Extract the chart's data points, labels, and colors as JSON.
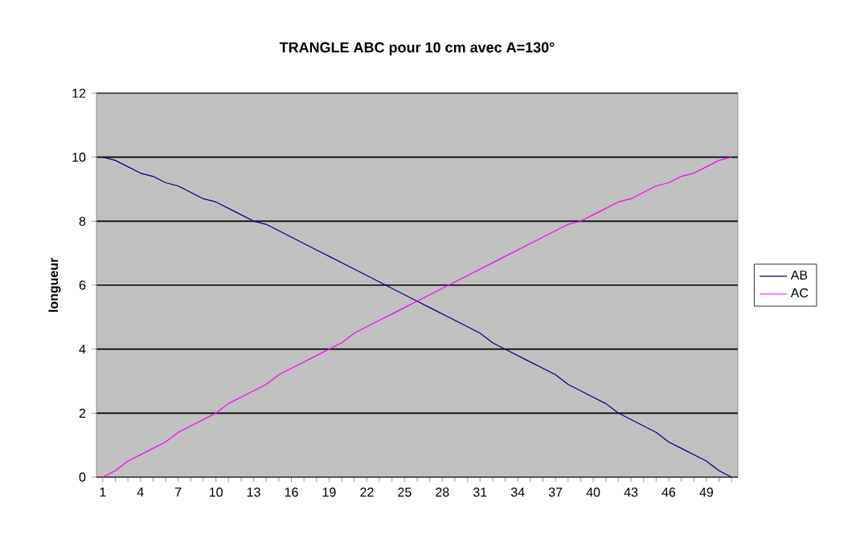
{
  "chart_data": {
    "type": "line",
    "title": "TRANGLE ABC pour 10 cm avec A=130°",
    "ylabel": "longueur",
    "categories": [
      "1",
      null,
      null,
      "4",
      null,
      null,
      "7",
      null,
      null,
      "10",
      null,
      null,
      "13",
      null,
      null,
      "16",
      null,
      null,
      "19",
      null,
      null,
      "22",
      null,
      null,
      "25",
      null,
      null,
      "28",
      null,
      null,
      "31",
      null,
      null,
      "34",
      null,
      null,
      "37",
      null,
      null,
      "40",
      null,
      null,
      "43",
      null,
      null,
      "46",
      null,
      null,
      "49",
      null,
      null
    ],
    "series": [
      {
        "name": "AB",
        "color": "#000080",
        "values": [
          10,
          9.9,
          9.7,
          9.5,
          9.4,
          9.2,
          9.1,
          8.9,
          8.7,
          8.6,
          8.4,
          8.2,
          8.0,
          7.9,
          7.7,
          7.5,
          7.3,
          7.1,
          6.9,
          6.7,
          6.5,
          6.3,
          6.1,
          5.9,
          5.7,
          5.5,
          5.3,
          5.1,
          4.9,
          4.7,
          4.5,
          4.2,
          4.0,
          3.8,
          3.6,
          3.4,
          3.2,
          2.9,
          2.7,
          2.5,
          2.3,
          2.0,
          1.8,
          1.6,
          1.4,
          1.1,
          0.9,
          0.7,
          0.5,
          0.2,
          0
        ]
      },
      {
        "name": "AC",
        "color": "#ff00ff",
        "values": [
          0,
          0.2,
          0.5,
          0.7,
          0.9,
          1.1,
          1.4,
          1.6,
          1.8,
          2.0,
          2.3,
          2.5,
          2.7,
          2.9,
          3.2,
          3.4,
          3.6,
          3.8,
          4.0,
          4.2,
          4.5,
          4.7,
          4.9,
          5.1,
          5.3,
          5.5,
          5.7,
          5.9,
          6.1,
          6.3,
          6.5,
          6.7,
          6.9,
          7.1,
          7.3,
          7.5,
          7.7,
          7.9,
          8.0,
          8.2,
          8.4,
          8.6,
          8.7,
          8.9,
          9.1,
          9.2,
          9.4,
          9.5,
          9.7,
          9.9,
          10
        ]
      }
    ],
    "ylim": [
      0,
      12
    ],
    "yticks": [
      0,
      2,
      4,
      6,
      8,
      10,
      12
    ],
    "grid": "y",
    "legend": "right",
    "marker": "none",
    "line_style": "solid"
  }
}
